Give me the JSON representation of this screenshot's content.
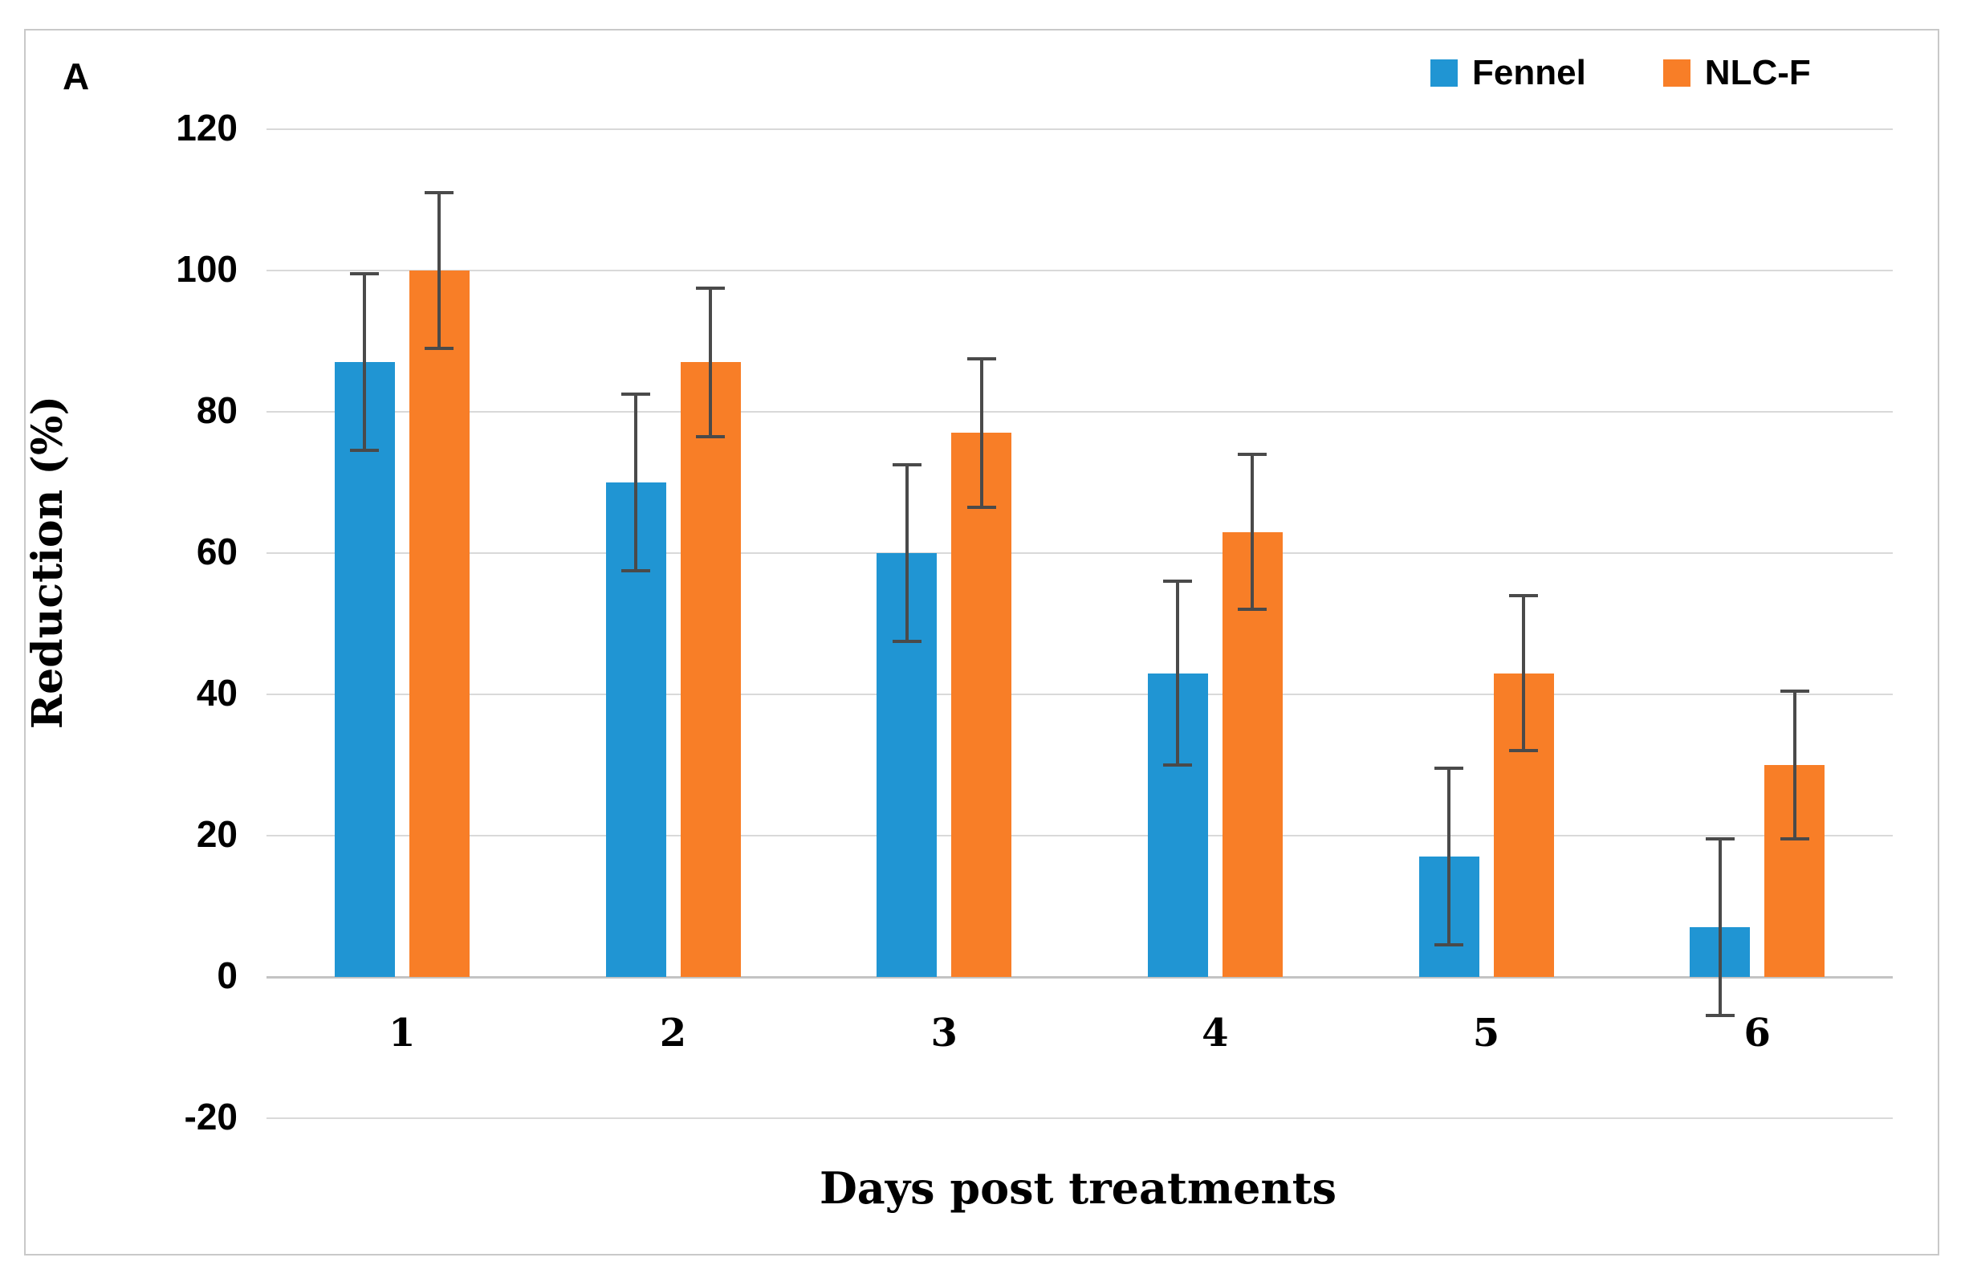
{
  "figure": {
    "panel_label": "A"
  },
  "chart_data": {
    "type": "bar",
    "title": "",
    "xlabel": "Days post treatments",
    "ylabel": "Reduction (%)",
    "categories": [
      "1",
      "2",
      "3",
      "4",
      "5",
      "6"
    ],
    "series": [
      {
        "name": "Fennel",
        "color": "#2095d3",
        "values": [
          87,
          70,
          60,
          43,
          17,
          7
        ],
        "errors": [
          12.5,
          12.5,
          12.5,
          13,
          12.5,
          12.5
        ]
      },
      {
        "name": "NLC-F",
        "color": "#f87e27",
        "values": [
          100,
          87,
          77,
          63,
          43,
          30
        ],
        "errors": [
          11,
          10.5,
          10.5,
          11,
          11,
          10.5
        ]
      }
    ],
    "ylim": [
      -20,
      120
    ],
    "yticks": [
      120,
      100,
      80,
      60,
      40,
      20,
      0,
      -20
    ],
    "grid": true,
    "legend_position": "top-right",
    "gridline_color": "#d9d9d9",
    "axis_line_color": "#c3c3c3",
    "error_bar_color": "#4a4a4a"
  }
}
